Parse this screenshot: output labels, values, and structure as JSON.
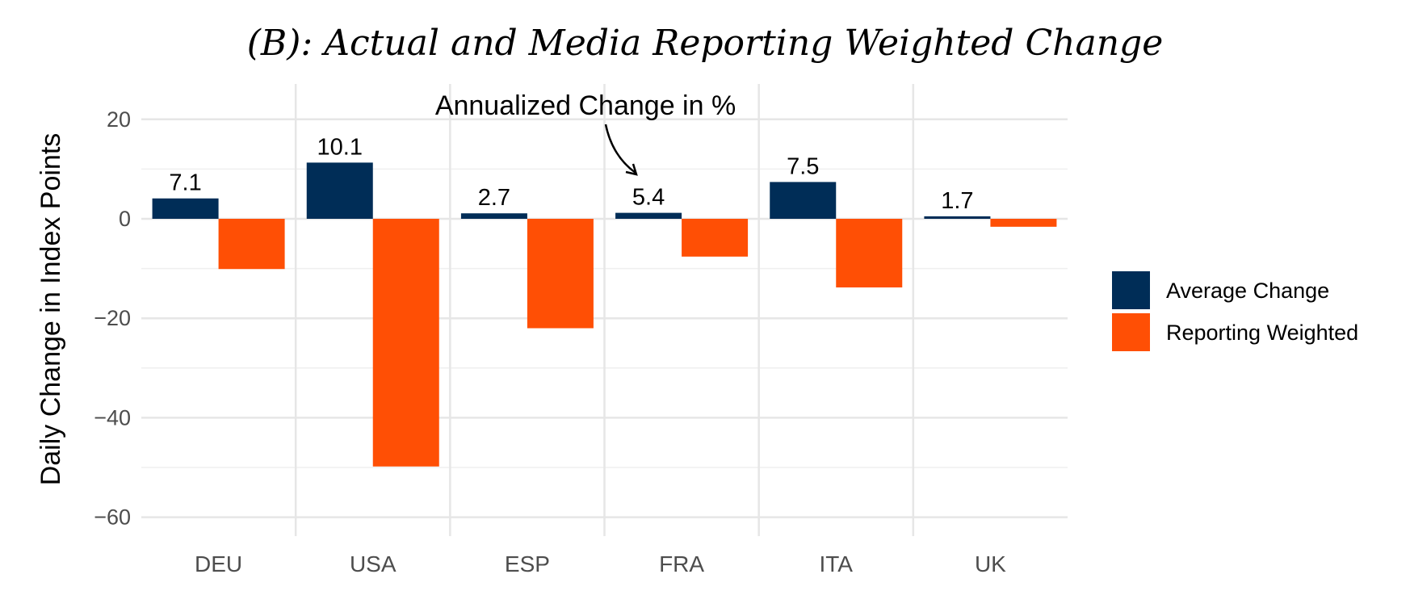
{
  "chart_data": {
    "type": "bar",
    "title": "(B): Actual and Media Reporting Weighted Change",
    "xlabel": "",
    "ylabel": "Daily Change in Index Points",
    "categories": [
      "DEU",
      "USA",
      "ESP",
      "FRA",
      "ITA",
      "UK"
    ],
    "series": [
      {
        "name": "Average Change",
        "color": "#002D57",
        "values": [
          4.1,
          11.3,
          1.1,
          1.2,
          7.4,
          0.5
        ]
      },
      {
        "name": "Reporting Weighted",
        "color": "#FF4F05",
        "values": [
          -10.1,
          -49.8,
          -22.0,
          -7.6,
          -13.8,
          -1.6
        ]
      }
    ],
    "data_labels": [
      "7.1",
      "10.1",
      "2.7",
      "5.4",
      "7.5",
      "1.7"
    ],
    "data_labels_series": "Average Change",
    "ylim": [
      -63,
      27
    ],
    "yticks": [
      20,
      0,
      -20,
      -40,
      -60
    ],
    "ytick_labels": [
      "20",
      "0",
      "−20",
      "−40",
      "−60"
    ],
    "annotation": {
      "text": "Annualized Change in %",
      "points_to": "FRA"
    },
    "grid": true,
    "legend_position": "right"
  }
}
